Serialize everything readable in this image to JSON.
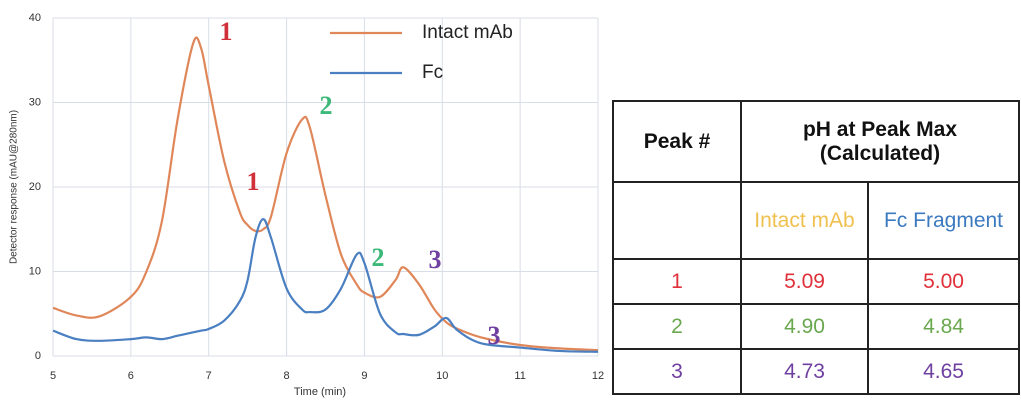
{
  "chart_data": {
    "type": "line",
    "x_label": "Time (min)",
    "y_label": "Detector response (mAU@280nm)",
    "x": [
      5.0,
      5.3,
      5.6,
      6.0,
      6.2,
      6.4,
      6.6,
      6.8,
      6.9,
      7.0,
      7.2,
      7.4,
      7.5,
      7.6,
      7.7,
      7.8,
      8.0,
      8.2,
      8.3,
      8.5,
      8.7,
      8.9,
      9.0,
      9.2,
      9.4,
      9.5,
      9.7,
      9.9,
      10.05,
      10.2,
      10.5,
      11.0,
      11.5,
      12.0
    ],
    "series": [
      {
        "name": "Intact mAb",
        "color": "#e0875a",
        "values": [
          5.7,
          4.8,
          4.7,
          7,
          10,
          16,
          28,
          37,
          36.5,
          32,
          23,
          17,
          15.5,
          14.8,
          15,
          16.5,
          24,
          28,
          27,
          19,
          12,
          8.5,
          7.5,
          7,
          9,
          10.5,
          8.5,
          5.5,
          4,
          3.2,
          2.2,
          1.3,
          0.9,
          0.7
        ]
      },
      {
        "name": "Fc",
        "color": "#4a7fc1",
        "values": [
          3,
          2,
          1.8,
          2,
          2.2,
          2,
          2.4,
          2.8,
          3,
          3.2,
          4.2,
          6.5,
          9,
          14,
          16.2,
          14,
          8,
          5.5,
          5.2,
          5.5,
          8,
          12,
          11,
          5,
          2.8,
          2.6,
          2.5,
          3.5,
          4.5,
          3,
          1.5,
          1,
          0.6,
          0.5
        ]
      }
    ],
    "annotations": [
      {
        "text": "1",
        "color": "#d0303a"
      },
      {
        "text": "2",
        "color": "#3cb878"
      },
      {
        "text": "3",
        "color": "#7040a0"
      },
      {
        "text": "1",
        "color": "#d0303a"
      },
      {
        "text": "2",
        "color": "#3cb878"
      },
      {
        "text": "3",
        "color": "#7040a0"
      }
    ],
    "xlim": [
      5,
      12
    ],
    "xticks": [
      5,
      6,
      7,
      8,
      9,
      10,
      11,
      12
    ],
    "ylim": [
      0,
      40
    ],
    "yticks": [
      0,
      10,
      20,
      30,
      40
    ],
    "grid": true,
    "legend": "upper right"
  },
  "table": {
    "header": [
      "Peak #",
      "pH at Peak Max (Calculated)"
    ],
    "subheader": [
      "Intact mAb",
      "Fc Fragment"
    ],
    "subheader_colors": [
      "#f0c050",
      "#3c7ac0"
    ],
    "rows": [
      [
        "1",
        "5.09",
        "5.00"
      ],
      [
        "2",
        "4.90",
        "4.84"
      ],
      [
        "3",
        "4.73",
        "4.65"
      ]
    ],
    "row_colors": [
      "#e0303a",
      "#6aa84f",
      "#7040a0"
    ]
  }
}
